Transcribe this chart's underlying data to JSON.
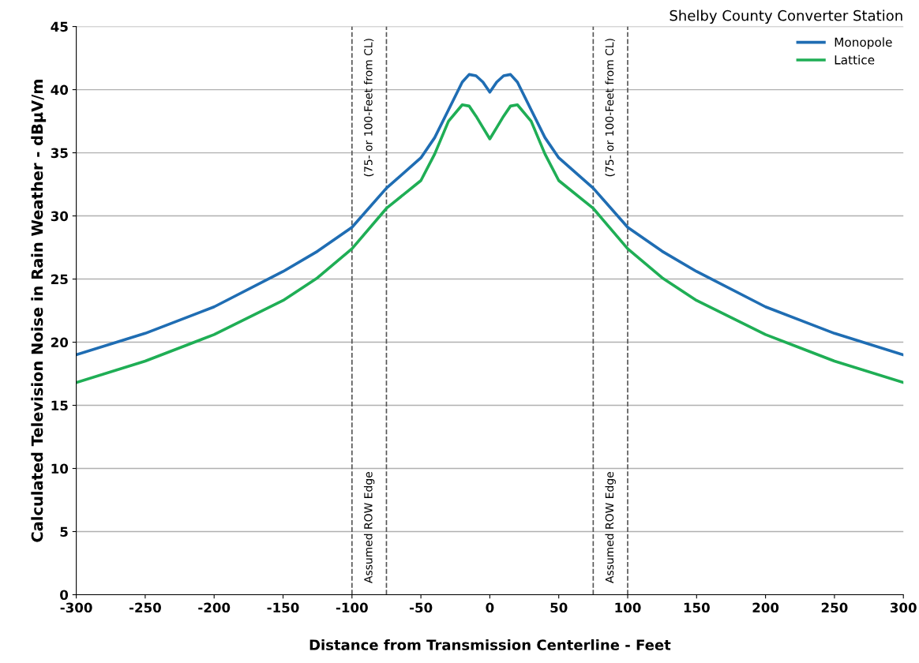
{
  "chart_data": {
    "type": "line",
    "title": "Shelby County Converter Station",
    "xlabel": "Distance from Transmission Centerline - Feet",
    "ylabel": "Calculated Television Noise in Rain Weather - dBμV/m",
    "x": [
      -300,
      -250,
      -200,
      -150,
      -125,
      -100,
      -75,
      -50,
      -40,
      -30,
      -20,
      -15,
      -10,
      -5,
      0,
      5,
      10,
      15,
      20,
      30,
      40,
      50,
      75,
      100,
      125,
      150,
      200,
      250,
      300
    ],
    "series": [
      {
        "name": "Monopole",
        "color": "#1f6db3",
        "values": [
          19.0,
          20.7,
          22.8,
          25.6,
          27.2,
          29.1,
          32.2,
          34.6,
          36.2,
          38.4,
          40.6,
          41.2,
          41.1,
          40.6,
          39.8,
          40.6,
          41.1,
          41.2,
          40.6,
          38.4,
          36.2,
          34.6,
          32.2,
          29.1,
          27.2,
          25.6,
          22.8,
          20.7,
          19.0
        ]
      },
      {
        "name": "Lattice",
        "color": "#1fae55",
        "values": [
          16.8,
          18.5,
          20.6,
          23.3,
          25.1,
          27.4,
          30.6,
          32.8,
          34.9,
          37.5,
          38.8,
          38.7,
          37.9,
          37.0,
          36.1,
          37.0,
          37.9,
          38.7,
          38.8,
          37.5,
          34.9,
          32.8,
          30.6,
          27.4,
          25.1,
          23.3,
          20.6,
          18.5,
          16.8
        ]
      }
    ],
    "xlim": [
      -300,
      300
    ],
    "xticks": [
      -300,
      -250,
      -200,
      -150,
      -100,
      -50,
      0,
      50,
      100,
      150,
      200,
      250,
      300
    ],
    "ylim": [
      0,
      45
    ],
    "yticks": [
      0,
      5,
      10,
      15,
      20,
      25,
      30,
      35,
      40,
      45
    ],
    "grid": "y",
    "legend": "top right",
    "marker": "none",
    "line_style": "solid",
    "ref_lines": [
      {
        "axis": "x",
        "value": -100,
        "color": "#555555",
        "line_style": "dashed"
      },
      {
        "axis": "x",
        "value": -75,
        "color": "#555555",
        "line_style": "dashed"
      },
      {
        "axis": "x",
        "value": 75,
        "color": "#555555",
        "line_style": "dashed"
      },
      {
        "axis": "x",
        "value": 100,
        "color": "#555555",
        "line_style": "dashed"
      }
    ],
    "annotations": [
      "(75- or 100-Feet from CL)",
      "Assumed ROW Edge",
      "(75- or 100-Feet from CL)",
      "Assumed ROW Edge"
    ]
  }
}
